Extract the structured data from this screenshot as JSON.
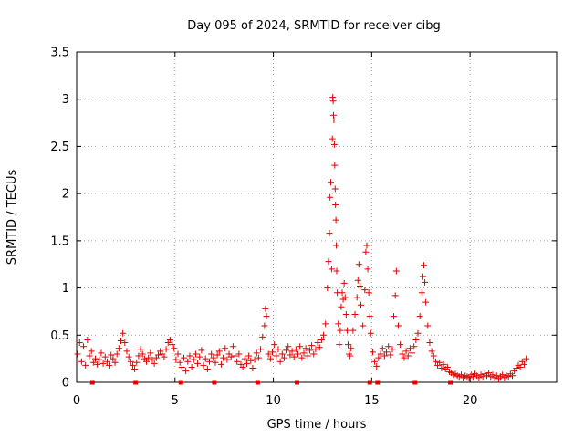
{
  "chart_data": {
    "type": "scatter",
    "title": "Day 095 of 2024, SRMTID for receiver cibg",
    "xlabel": "GPS time / hours",
    "ylabel": "SRMTID / TECUs",
    "xlim": [
      0,
      24.4
    ],
    "ylim": [
      0,
      3.5
    ],
    "xticks": [
      0,
      5,
      10,
      15,
      20
    ],
    "xtick_labels": [
      "0",
      "5",
      "10",
      "15",
      "20"
    ],
    "yticks": [
      0,
      0.5,
      1,
      1.5,
      2,
      2.5,
      3,
      3.5
    ],
    "ytick_labels": [
      "0",
      "0.5",
      "1",
      "1.5",
      "2",
      "2.5",
      "3",
      "3.5"
    ],
    "grid": true,
    "marker": "+",
    "color": "#e00000",
    "series": [
      {
        "name": "SRMTID",
        "points": [
          [
            0.05,
            0.3
          ],
          [
            0.15,
            0.42
          ],
          [
            0.25,
            0.22
          ],
          [
            0.35,
            0.38
          ],
          [
            0.45,
            0.18
          ],
          [
            0.55,
            0.45
          ],
          [
            0.65,
            0.28
          ],
          [
            0.75,
            0.33
          ],
          [
            0.85,
            0.21
          ],
          [
            0.95,
            0.25
          ],
          [
            1.05,
            0.19
          ],
          [
            1.15,
            0.24
          ],
          [
            1.25,
            0.31
          ],
          [
            1.35,
            0.2
          ],
          [
            1.45,
            0.27
          ],
          [
            1.55,
            0.22
          ],
          [
            1.65,
            0.18
          ],
          [
            1.75,
            0.29
          ],
          [
            1.85,
            0.25
          ],
          [
            1.95,
            0.21
          ],
          [
            2.05,
            0.3
          ],
          [
            2.15,
            0.36
          ],
          [
            2.25,
            0.44
          ],
          [
            2.35,
            0.52
          ],
          [
            2.45,
            0.42
          ],
          [
            2.55,
            0.33
          ],
          [
            2.65,
            0.27
          ],
          [
            2.75,
            0.22
          ],
          [
            2.85,
            0.18
          ],
          [
            2.95,
            0.14
          ],
          [
            3.05,
            0.21
          ],
          [
            3.15,
            0.28
          ],
          [
            3.25,
            0.35
          ],
          [
            3.35,
            0.3
          ],
          [
            3.45,
            0.25
          ],
          [
            3.55,
            0.22
          ],
          [
            3.65,
            0.26
          ],
          [
            3.75,
            0.31
          ],
          [
            3.85,
            0.24
          ],
          [
            3.95,
            0.2
          ],
          [
            4.05,
            0.26
          ],
          [
            4.15,
            0.29
          ],
          [
            4.25,
            0.33
          ],
          [
            4.35,
            0.3
          ],
          [
            4.45,
            0.27
          ],
          [
            4.55,
            0.35
          ],
          [
            4.65,
            0.42
          ],
          [
            4.75,
            0.45
          ],
          [
            4.85,
            0.4
          ],
          [
            4.95,
            0.36
          ],
          [
            5.05,
            0.24
          ],
          [
            5.15,
            0.3
          ],
          [
            5.25,
            0.21
          ],
          [
            5.35,
            0.16
          ],
          [
            5.45,
            0.26
          ],
          [
            5.55,
            0.12
          ],
          [
            5.65,
            0.22
          ],
          [
            5.75,
            0.28
          ],
          [
            5.85,
            0.16
          ],
          [
            5.95,
            0.24
          ],
          [
            6.05,
            0.3
          ],
          [
            6.15,
            0.2
          ],
          [
            6.25,
            0.27
          ],
          [
            6.35,
            0.34
          ],
          [
            6.45,
            0.18
          ],
          [
            6.55,
            0.25
          ],
          [
            6.65,
            0.14
          ],
          [
            6.75,
            0.22
          ],
          [
            6.85,
            0.3
          ],
          [
            6.95,
            0.26
          ],
          [
            7.05,
            0.21
          ],
          [
            7.15,
            0.29
          ],
          [
            7.25,
            0.33
          ],
          [
            7.35,
            0.19
          ],
          [
            7.45,
            0.26
          ],
          [
            7.55,
            0.36
          ],
          [
            7.65,
            0.24
          ],
          [
            7.75,
            0.3
          ],
          [
            7.85,
            0.27
          ],
          [
            7.95,
            0.38
          ],
          [
            8.05,
            0.28
          ],
          [
            8.15,
            0.22
          ],
          [
            8.25,
            0.3
          ],
          [
            8.35,
            0.19
          ],
          [
            8.45,
            0.16
          ],
          [
            8.55,
            0.25
          ],
          [
            8.65,
            0.2
          ],
          [
            8.75,
            0.28
          ],
          [
            8.85,
            0.23
          ],
          [
            8.95,
            0.15
          ],
          [
            9.05,
            0.24
          ],
          [
            9.15,
            0.31
          ],
          [
            9.25,
            0.26
          ],
          [
            9.35,
            0.35
          ],
          [
            9.45,
            0.48
          ],
          [
            9.55,
            0.6
          ],
          [
            9.6,
            0.78
          ],
          [
            9.65,
            0.7
          ],
          [
            9.75,
            0.3
          ],
          [
            9.85,
            0.25
          ],
          [
            9.95,
            0.32
          ],
          [
            10.05,
            0.4
          ],
          [
            10.15,
            0.28
          ],
          [
            10.25,
            0.35
          ],
          [
            10.35,
            0.22
          ],
          [
            10.45,
            0.3
          ],
          [
            10.55,
            0.26
          ],
          [
            10.65,
            0.34
          ],
          [
            10.75,
            0.38
          ],
          [
            10.85,
            0.29
          ],
          [
            10.95,
            0.33
          ],
          [
            11.05,
            0.27
          ],
          [
            11.15,
            0.35
          ],
          [
            11.25,
            0.3
          ],
          [
            11.35,
            0.38
          ],
          [
            11.45,
            0.26
          ],
          [
            11.55,
            0.31
          ],
          [
            11.65,
            0.36
          ],
          [
            11.75,
            0.28
          ],
          [
            11.85,
            0.34
          ],
          [
            11.95,
            0.39
          ],
          [
            12.05,
            0.3
          ],
          [
            12.15,
            0.35
          ],
          [
            12.25,
            0.42
          ],
          [
            12.35,
            0.37
          ],
          [
            12.45,
            0.45
          ],
          [
            12.55,
            0.5
          ],
          [
            12.65,
            0.62
          ],
          [
            12.75,
            1.0
          ],
          [
            12.8,
            1.28
          ],
          [
            12.85,
            1.58
          ],
          [
            12.88,
            1.96
          ],
          [
            12.92,
            2.12
          ],
          [
            12.96,
            1.2
          ],
          [
            13.0,
            2.58
          ],
          [
            13.02,
            3.02
          ],
          [
            13.04,
            2.98
          ],
          [
            13.06,
            2.83
          ],
          [
            13.08,
            2.78
          ],
          [
            13.1,
            2.52
          ],
          [
            13.12,
            2.3
          ],
          [
            13.14,
            2.05
          ],
          [
            13.16,
            1.88
          ],
          [
            13.18,
            1.72
          ],
          [
            13.2,
            1.45
          ],
          [
            13.22,
            1.18
          ],
          [
            13.25,
            0.95
          ],
          [
            13.3,
            0.62
          ],
          [
            13.35,
            0.4
          ],
          [
            13.4,
            0.55
          ],
          [
            13.45,
            0.8
          ],
          [
            13.5,
            0.95
          ],
          [
            13.55,
            0.88
          ],
          [
            13.6,
            1.05
          ],
          [
            13.65,
            0.9
          ],
          [
            13.7,
            0.72
          ],
          [
            13.75,
            0.55
          ],
          [
            13.8,
            0.4
          ],
          [
            13.85,
            0.3
          ],
          [
            13.9,
            0.28
          ],
          [
            13.95,
            0.36
          ],
          [
            14.05,
            0.55
          ],
          [
            14.15,
            0.72
          ],
          [
            14.25,
            0.9
          ],
          [
            14.3,
            1.08
          ],
          [
            14.35,
            1.25
          ],
          [
            14.4,
            1.02
          ],
          [
            14.45,
            0.82
          ],
          [
            14.55,
            0.6
          ],
          [
            14.65,
            0.98
          ],
          [
            14.7,
            1.38
          ],
          [
            14.75,
            1.45
          ],
          [
            14.8,
            1.2
          ],
          [
            14.85,
            0.95
          ],
          [
            14.9,
            0.7
          ],
          [
            14.95,
            0.52
          ],
          [
            15.05,
            0.32
          ],
          [
            15.15,
            0.22
          ],
          [
            15.25,
            0.17
          ],
          [
            15.35,
            0.26
          ],
          [
            15.45,
            0.3
          ],
          [
            15.55,
            0.36
          ],
          [
            15.65,
            0.28
          ],
          [
            15.75,
            0.32
          ],
          [
            15.85,
            0.38
          ],
          [
            15.95,
            0.29
          ],
          [
            16.05,
            0.35
          ],
          [
            16.12,
            0.7
          ],
          [
            16.2,
            0.92
          ],
          [
            16.25,
            1.18
          ],
          [
            16.35,
            0.6
          ],
          [
            16.45,
            0.4
          ],
          [
            16.55,
            0.3
          ],
          [
            16.65,
            0.26
          ],
          [
            16.75,
            0.33
          ],
          [
            16.85,
            0.28
          ],
          [
            16.95,
            0.36
          ],
          [
            17.05,
            0.31
          ],
          [
            17.15,
            0.38
          ],
          [
            17.25,
            0.45
          ],
          [
            17.35,
            0.52
          ],
          [
            17.45,
            0.7
          ],
          [
            17.55,
            0.95
          ],
          [
            17.6,
            1.12
          ],
          [
            17.65,
            1.24
          ],
          [
            17.7,
            1.06
          ],
          [
            17.75,
            0.85
          ],
          [
            17.85,
            0.6
          ],
          [
            17.95,
            0.42
          ],
          [
            18.05,
            0.33
          ],
          [
            18.15,
            0.28
          ],
          [
            18.25,
            0.22
          ],
          [
            18.35,
            0.18
          ],
          [
            18.45,
            0.21
          ],
          [
            18.55,
            0.15
          ],
          [
            18.65,
            0.19
          ],
          [
            18.75,
            0.14
          ],
          [
            18.85,
            0.16
          ],
          [
            18.95,
            0.11
          ],
          [
            19.05,
            0.1
          ],
          [
            19.15,
            0.08
          ],
          [
            19.25,
            0.09
          ],
          [
            19.35,
            0.07
          ],
          [
            19.45,
            0.06
          ],
          [
            19.55,
            0.08
          ],
          [
            19.65,
            0.05
          ],
          [
            19.75,
            0.07
          ],
          [
            19.85,
            0.06
          ],
          [
            19.95,
            0.05
          ],
          [
            20.05,
            0.08
          ],
          [
            20.15,
            0.06
          ],
          [
            20.25,
            0.09
          ],
          [
            20.35,
            0.07
          ],
          [
            20.45,
            0.05
          ],
          [
            20.55,
            0.08
          ],
          [
            20.65,
            0.06
          ],
          [
            20.75,
            0.09
          ],
          [
            20.85,
            0.07
          ],
          [
            20.95,
            0.1
          ],
          [
            21.05,
            0.06
          ],
          [
            21.15,
            0.08
          ],
          [
            21.25,
            0.05
          ],
          [
            21.35,
            0.07
          ],
          [
            21.45,
            0.04
          ],
          [
            21.55,
            0.06
          ],
          [
            21.65,
            0.08
          ],
          [
            21.75,
            0.05
          ],
          [
            21.85,
            0.07
          ],
          [
            21.95,
            0.06
          ],
          [
            22.05,
            0.09
          ],
          [
            22.15,
            0.07
          ],
          [
            22.25,
            0.12
          ],
          [
            22.35,
            0.15
          ],
          [
            22.45,
            0.18
          ],
          [
            22.55,
            0.16
          ],
          [
            22.65,
            0.22
          ],
          [
            22.75,
            0.19
          ],
          [
            22.85,
            0.25
          ]
        ]
      },
      {
        "name": "zero markers",
        "points": [
          [
            0.8,
            0
          ],
          [
            3.0,
            0
          ],
          [
            5.3,
            0
          ],
          [
            7.0,
            0
          ],
          [
            9.2,
            0
          ],
          [
            11.2,
            0
          ],
          [
            14.9,
            0
          ],
          [
            15.3,
            0
          ],
          [
            17.2,
            0
          ],
          [
            19.0,
            0
          ]
        ]
      }
    ]
  }
}
